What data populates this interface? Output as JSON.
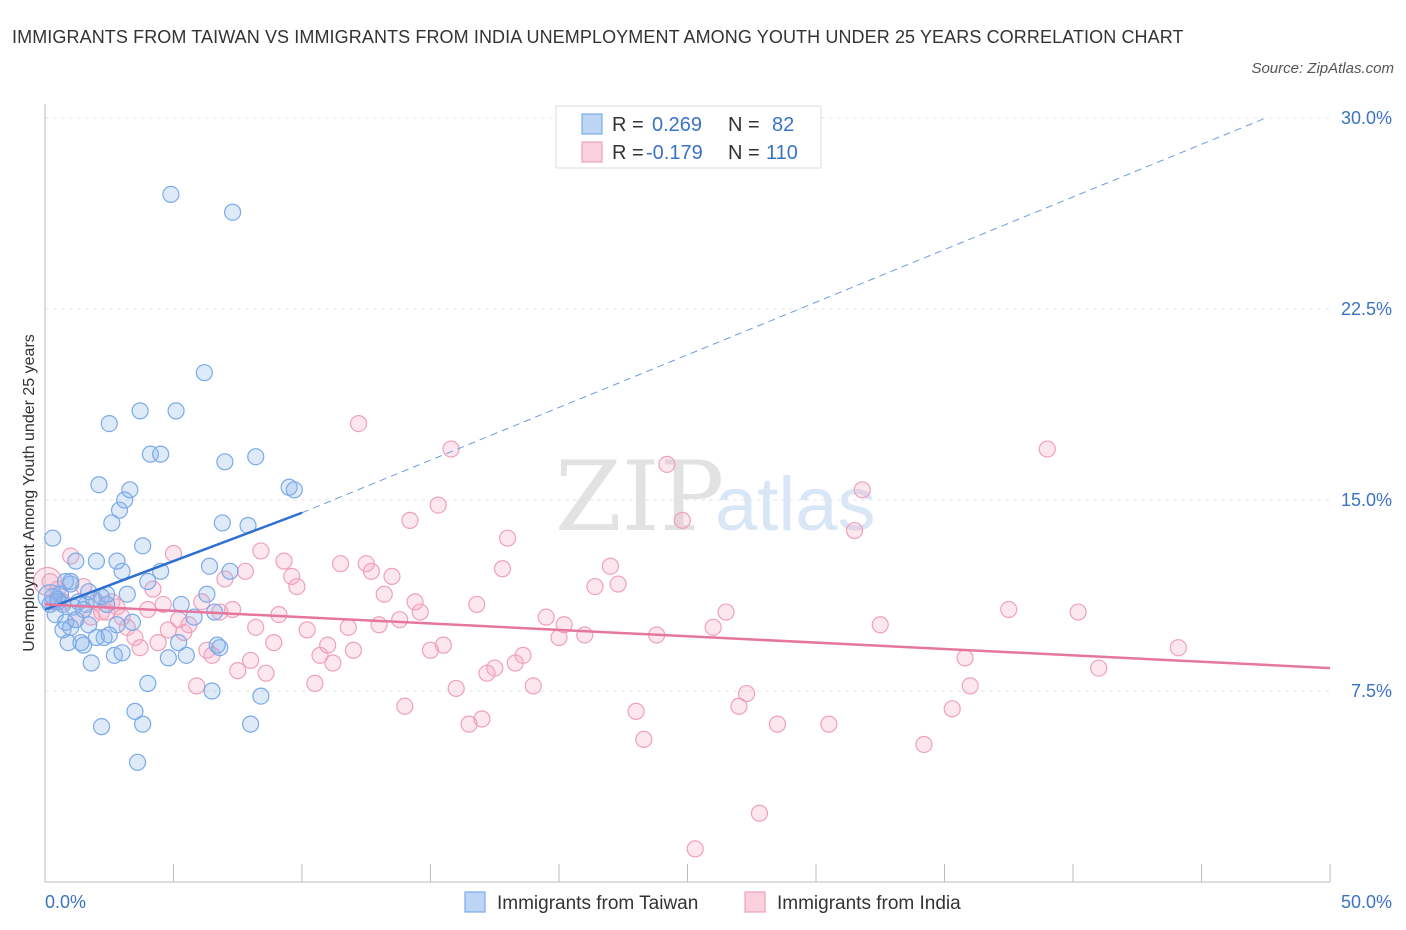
{
  "title": "IMMIGRANTS FROM TAIWAN VS IMMIGRANTS FROM INDIA UNEMPLOYMENT AMONG YOUTH UNDER 25 YEARS CORRELATION CHART",
  "source": "Source: ZipAtlas.com",
  "watermark": {
    "zip": "ZIP",
    "atlas": "atlas"
  },
  "legend": {
    "r_label": "R =",
    "n_label": "N =",
    "taiwan": {
      "r": "0.269",
      "n": "82"
    },
    "india": {
      "r": "-0.179",
      "n": "110"
    }
  },
  "chart_data": {
    "type": "scatter",
    "xlabel": "",
    "ylabel": "Unemployment Among Youth under 25 years",
    "xlim": [
      0,
      50
    ],
    "ylim": [
      0,
      30
    ],
    "x_tick_labels": [
      "0.0%",
      "50.0%"
    ],
    "y_ticks": [
      7.5,
      15.0,
      22.5,
      30.0
    ],
    "y_tick_labels": [
      "7.5%",
      "15.0%",
      "22.5%",
      "30.0%"
    ],
    "grid": true,
    "legend_placement": "top-center",
    "series": [
      {
        "name": "Immigrants from Taiwan",
        "color": "#7aaae8",
        "trend": {
          "x": [
            0,
            10
          ],
          "y": [
            10.7,
            14.5
          ],
          "dashed_to": [
            47.5,
            30.0
          ]
        },
        "points": [
          [
            0.2,
            10.9
          ],
          [
            0.3,
            11.2
          ],
          [
            0.4,
            10.5
          ],
          [
            0.5,
            11.0
          ],
          [
            0.6,
            11.3
          ],
          [
            0.7,
            9.9
          ],
          [
            0.8,
            10.2
          ],
          [
            0.8,
            11.8
          ],
          [
            0.9,
            9.4
          ],
          [
            1.0,
            11.7
          ],
          [
            1.0,
            10.0
          ],
          [
            1.1,
            10.8
          ],
          [
            1.2,
            12.6
          ],
          [
            1.3,
            11.0
          ],
          [
            1.4,
            9.4
          ],
          [
            1.5,
            9.3
          ],
          [
            1.6,
            10.9
          ],
          [
            1.7,
            11.4
          ],
          [
            1.7,
            10.1
          ],
          [
            1.8,
            8.6
          ],
          [
            1.9,
            11.1
          ],
          [
            2.0,
            9.6
          ],
          [
            2.0,
            12.6
          ],
          [
            2.1,
            15.6
          ],
          [
            2.2,
            6.1
          ],
          [
            2.2,
            11.2
          ],
          [
            2.3,
            9.6
          ],
          [
            2.4,
            10.9
          ],
          [
            2.4,
            11.3
          ],
          [
            2.5,
            9.7
          ],
          [
            2.5,
            18.0
          ],
          [
            2.6,
            14.1
          ],
          [
            2.7,
            8.9
          ],
          [
            2.8,
            10.1
          ],
          [
            2.8,
            12.6
          ],
          [
            2.9,
            14.6
          ],
          [
            3.0,
            9.0
          ],
          [
            3.0,
            12.2
          ],
          [
            3.1,
            15.0
          ],
          [
            3.2,
            11.3
          ],
          [
            3.3,
            15.4
          ],
          [
            3.4,
            10.2
          ],
          [
            3.5,
            6.7
          ],
          [
            3.6,
            4.7
          ],
          [
            3.7,
            18.5
          ],
          [
            3.8,
            13.2
          ],
          [
            3.8,
            6.2
          ],
          [
            4.0,
            7.8
          ],
          [
            4.0,
            11.8
          ],
          [
            4.1,
            16.8
          ],
          [
            4.5,
            12.2
          ],
          [
            4.5,
            16.8
          ],
          [
            4.8,
            8.8
          ],
          [
            4.9,
            27.0
          ],
          [
            5.1,
            18.5
          ],
          [
            5.2,
            9.4
          ],
          [
            5.3,
            10.9
          ],
          [
            5.5,
            8.9
          ],
          [
            5.8,
            10.4
          ],
          [
            6.2,
            20.0
          ],
          [
            6.3,
            11.3
          ],
          [
            6.4,
            12.4
          ],
          [
            6.5,
            7.5
          ],
          [
            6.6,
            10.6
          ],
          [
            6.7,
            9.3
          ],
          [
            6.8,
            9.2
          ],
          [
            6.9,
            14.1
          ],
          [
            7.0,
            16.5
          ],
          [
            7.2,
            12.2
          ],
          [
            7.3,
            26.3
          ],
          [
            7.9,
            14.0
          ],
          [
            8.0,
            6.2
          ],
          [
            8.2,
            16.7
          ],
          [
            8.4,
            7.3
          ],
          [
            9.5,
            15.5
          ],
          [
            9.7,
            15.4
          ],
          [
            0.3,
            13.5
          ],
          [
            0.5,
            11.1
          ],
          [
            0.7,
            10.9
          ],
          [
            1.0,
            11.8
          ],
          [
            1.2,
            10.3
          ],
          [
            1.5,
            10.7
          ]
        ]
      },
      {
        "name": "Immigrants from India",
        "color": "#f0a0bb",
        "trend": {
          "x": [
            0,
            50
          ],
          "y": [
            10.9,
            8.4
          ]
        },
        "points": [
          [
            0.2,
            11.8
          ],
          [
            0.3,
            11.0
          ],
          [
            0.5,
            11.5
          ],
          [
            0.7,
            11.0
          ],
          [
            1.0,
            12.8
          ],
          [
            1.2,
            10.3
          ],
          [
            1.5,
            11.6
          ],
          [
            1.8,
            10.4
          ],
          [
            2.0,
            11.0
          ],
          [
            2.2,
            10.6
          ],
          [
            2.4,
            10.6
          ],
          [
            2.6,
            11.0
          ],
          [
            2.8,
            10.8
          ],
          [
            3.0,
            10.4
          ],
          [
            3.2,
            10.0
          ],
          [
            3.5,
            9.6
          ],
          [
            3.7,
            9.2
          ],
          [
            4.0,
            10.7
          ],
          [
            4.2,
            11.5
          ],
          [
            4.4,
            9.4
          ],
          [
            4.6,
            10.9
          ],
          [
            4.8,
            9.9
          ],
          [
            5.0,
            12.9
          ],
          [
            5.2,
            10.3
          ],
          [
            5.4,
            9.8
          ],
          [
            5.6,
            10.1
          ],
          [
            5.9,
            7.7
          ],
          [
            6.1,
            11.0
          ],
          [
            6.3,
            9.1
          ],
          [
            6.5,
            8.9
          ],
          [
            6.8,
            10.6
          ],
          [
            7.0,
            11.9
          ],
          [
            7.3,
            10.7
          ],
          [
            7.5,
            8.3
          ],
          [
            7.8,
            12.2
          ],
          [
            8.0,
            8.7
          ],
          [
            8.2,
            10.0
          ],
          [
            8.4,
            13.0
          ],
          [
            8.6,
            8.2
          ],
          [
            8.9,
            9.4
          ],
          [
            9.1,
            10.5
          ],
          [
            9.3,
            12.6
          ],
          [
            9.6,
            12.0
          ],
          [
            9.8,
            11.6
          ],
          [
            10.2,
            9.9
          ],
          [
            10.5,
            7.8
          ],
          [
            10.7,
            8.9
          ],
          [
            11.0,
            9.3
          ],
          [
            11.2,
            8.6
          ],
          [
            11.5,
            12.5
          ],
          [
            11.8,
            10.0
          ],
          [
            12.0,
            9.1
          ],
          [
            12.2,
            18.0
          ],
          [
            12.5,
            12.5
          ],
          [
            12.7,
            12.2
          ],
          [
            13.0,
            10.1
          ],
          [
            13.2,
            11.3
          ],
          [
            13.5,
            12.0
          ],
          [
            13.8,
            10.3
          ],
          [
            14.0,
            6.9
          ],
          [
            14.2,
            14.2
          ],
          [
            14.4,
            11.0
          ],
          [
            14.6,
            10.6
          ],
          [
            15.0,
            9.1
          ],
          [
            15.3,
            14.8
          ],
          [
            15.5,
            9.3
          ],
          [
            15.8,
            17.0
          ],
          [
            16.0,
            7.6
          ],
          [
            16.5,
            6.2
          ],
          [
            16.8,
            10.9
          ],
          [
            17.0,
            6.4
          ],
          [
            17.2,
            8.2
          ],
          [
            17.5,
            8.4
          ],
          [
            17.8,
            12.3
          ],
          [
            18.0,
            13.5
          ],
          [
            18.3,
            8.6
          ],
          [
            18.6,
            8.9
          ],
          [
            19.0,
            7.7
          ],
          [
            19.5,
            10.4
          ],
          [
            20.0,
            9.6
          ],
          [
            20.2,
            10.1
          ],
          [
            21.0,
            9.7
          ],
          [
            21.4,
            11.6
          ],
          [
            22.0,
            12.4
          ],
          [
            22.3,
            11.7
          ],
          [
            23.0,
            6.7
          ],
          [
            23.3,
            5.6
          ],
          [
            23.8,
            9.7
          ],
          [
            24.2,
            16.4
          ],
          [
            24.8,
            14.2
          ],
          [
            25.3,
            1.3
          ],
          [
            26.0,
            10.0
          ],
          [
            26.5,
            10.6
          ],
          [
            27.8,
            2.7
          ],
          [
            27.0,
            6.9
          ],
          [
            27.3,
            7.4
          ],
          [
            28.5,
            6.2
          ],
          [
            30.5,
            6.2
          ],
          [
            31.5,
            13.8
          ],
          [
            31.8,
            15.4
          ],
          [
            32.5,
            10.1
          ],
          [
            34.2,
            5.4
          ],
          [
            35.3,
            6.8
          ],
          [
            35.8,
            8.8
          ],
          [
            36.0,
            7.7
          ],
          [
            37.5,
            10.7
          ],
          [
            39.0,
            17.0
          ],
          [
            41.0,
            8.4
          ],
          [
            40.2,
            10.6
          ],
          [
            44.1,
            9.2
          ]
        ]
      }
    ]
  },
  "bottom_legend": {
    "taiwan": "Immigrants from Taiwan",
    "india": "Immigrants from India"
  }
}
